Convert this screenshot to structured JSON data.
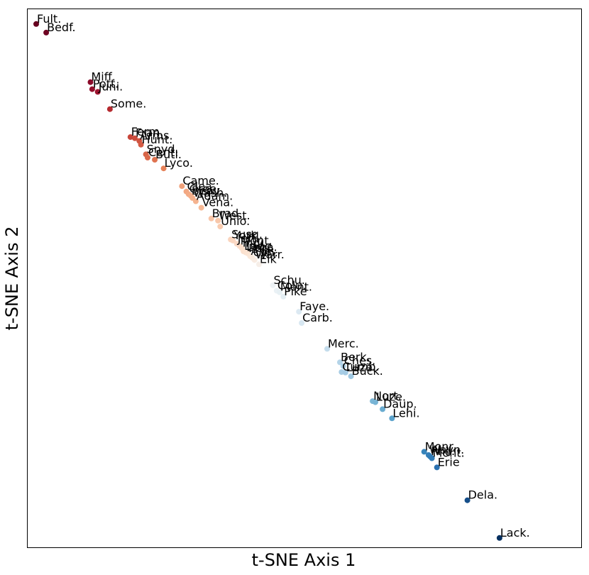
{
  "chart_data": {
    "type": "scatter",
    "title": "",
    "xlabel": "t-SNE Axis 1",
    "ylabel": "t-SNE Axis 2",
    "xlim": [
      0,
      100
    ],
    "ylim": [
      0,
      100
    ],
    "ticks": false,
    "grid": false,
    "colormap": "RdBu",
    "points": [
      {
        "label": "Fult.",
        "x": 1.6,
        "y": 97.2,
        "color": "#67001f"
      },
      {
        "label": "Bedf.",
        "x": 3.4,
        "y": 95.6,
        "color": "#6f0322"
      },
      {
        "label": "Miff.",
        "x": 11.4,
        "y": 86.4,
        "color": "#8b0a2a"
      },
      {
        "label": "Pott.",
        "x": 11.7,
        "y": 85.1,
        "color": "#930e2c"
      },
      {
        "label": "Juni.",
        "x": 12.7,
        "y": 84.6,
        "color": "#9d132e"
      },
      {
        "label": "Some.",
        "x": 14.9,
        "y": 81.4,
        "color": "#b52a2f"
      },
      {
        "label": "Ferm.",
        "x": 18.6,
        "y": 76.2,
        "color": "#c8463a"
      },
      {
        "label": "Fran.",
        "x": 19.4,
        "y": 76.0,
        "color": "#cc4c3d"
      },
      {
        "label": "Arms.",
        "x": 20.2,
        "y": 75.5,
        "color": "#d05440"
      },
      {
        "label": "Hunt.",
        "x": 20.5,
        "y": 74.8,
        "color": "#d35a43"
      },
      {
        "label": "Snyd.",
        "x": 21.4,
        "y": 73.0,
        "color": "#d86548"
      },
      {
        "label": "Cent.",
        "x": 21.7,
        "y": 72.4,
        "color": "#db6a4c"
      },
      {
        "label": "Butl.",
        "x": 23.0,
        "y": 72.0,
        "color": "#df7350"
      },
      {
        "label": "Lyco.",
        "x": 24.6,
        "y": 70.4,
        "color": "#e58158"
      },
      {
        "label": "Came.",
        "x": 27.9,
        "y": 67.1,
        "color": "#f0a079"
      },
      {
        "label": "Clea.",
        "x": 28.7,
        "y": 66.1,
        "color": "#f2a782"
      },
      {
        "label": "Gree.",
        "x": 29.1,
        "y": 65.6,
        "color": "#f3aa85"
      },
      {
        "label": "Beav.",
        "x": 29.5,
        "y": 65.3,
        "color": "#f4ad88"
      },
      {
        "label": "Wash.",
        "x": 29.8,
        "y": 64.9,
        "color": "#f5b08b"
      },
      {
        "label": "Adam.",
        "x": 30.4,
        "y": 64.3,
        "color": "#f5b38f"
      },
      {
        "label": "Vena.",
        "x": 31.4,
        "y": 63.1,
        "color": "#f6b894"
      },
      {
        "label": "Brad.",
        "x": 33.2,
        "y": 61.1,
        "color": "#f8c4a6"
      },
      {
        "label": "West.",
        "x": 34.4,
        "y": 60.7,
        "color": "#f8c7aa"
      },
      {
        "label": "Unio.",
        "x": 34.8,
        "y": 59.6,
        "color": "#f9cbaf"
      },
      {
        "label": "Susq.",
        "x": 36.7,
        "y": 57.2,
        "color": "#fad4bd"
      },
      {
        "label": "York",
        "x": 37.1,
        "y": 57.0,
        "color": "#fad6c0"
      },
      {
        "label": "Jeff.",
        "x": 37.8,
        "y": 56.4,
        "color": "#fbd9c5"
      },
      {
        "label": "Mont.",
        "x": 38.3,
        "y": 56.0,
        "color": "#fbdbc8"
      },
      {
        "label": "Indi.",
        "x": 38.7,
        "y": 55.6,
        "color": "#fbdeca"
      },
      {
        "label": "Lanc.",
        "x": 39.0,
        "y": 55.0,
        "color": "#fbe0cd"
      },
      {
        "label": "Leba.",
        "x": 39.4,
        "y": 54.8,
        "color": "#fbe2d0"
      },
      {
        "label": "Perr.",
        "x": 39.8,
        "y": 54.6,
        "color": "#fbe4d3"
      },
      {
        "label": "Alle.",
        "x": 40.2,
        "y": 54.1,
        "color": "#fae7d8"
      },
      {
        "label": "Clin.",
        "x": 40.6,
        "y": 53.8,
        "color": "#f9e9dc"
      },
      {
        "label": "Warr.",
        "x": 41.0,
        "y": 53.4,
        "color": "#f8ebe1"
      },
      {
        "label": "Elk",
        "x": 41.8,
        "y": 52.6,
        "color": "#f6eee8"
      },
      {
        "label": "Schu.",
        "x": 44.3,
        "y": 48.7,
        "color": "#edf2f5"
      },
      {
        "label": "Colu.",
        "x": 45.0,
        "y": 47.7,
        "color": "#eaf1f5"
      },
      {
        "label": "Mont.",
        "x": 45.5,
        "y": 47.4,
        "color": "#e7f0f4"
      },
      {
        "label": "Pike",
        "x": 46.2,
        "y": 46.6,
        "color": "#e4eef3"
      },
      {
        "label": "Faye.",
        "x": 49.0,
        "y": 43.8,
        "color": "#dce9f2"
      },
      {
        "label": "Carb.",
        "x": 49.5,
        "y": 41.7,
        "color": "#d7e7f1"
      },
      {
        "label": "Merc.",
        "x": 54.1,
        "y": 36.9,
        "color": "#c4dcec"
      },
      {
        "label": "Berk.",
        "x": 56.4,
        "y": 34.4,
        "color": "#b4d4e8"
      },
      {
        "label": "Ches.",
        "x": 57.0,
        "y": 33.7,
        "color": "#afd1e7"
      },
      {
        "label": "Cumb.",
        "x": 56.7,
        "y": 32.6,
        "color": "#a8cde5"
      },
      {
        "label": "Luze.",
        "x": 57.4,
        "y": 32.5,
        "color": "#a5cbe4"
      },
      {
        "label": "Buck.",
        "x": 58.4,
        "y": 31.8,
        "color": "#9ec7e1"
      },
      {
        "label": "Nort.",
        "x": 62.3,
        "y": 27.2,
        "color": "#7bb6d6"
      },
      {
        "label": "Luze.",
        "x": 62.8,
        "y": 27.0,
        "color": "#78b4d5"
      },
      {
        "label": "Daup.",
        "x": 64.1,
        "y": 25.7,
        "color": "#6aacd0"
      },
      {
        "label": "Lehi.",
        "x": 65.8,
        "y": 24.0,
        "color": "#5ba2cb"
      },
      {
        "label": "Monr.",
        "x": 71.6,
        "y": 17.8,
        "color": "#3784bb"
      },
      {
        "label": "Wayn.",
        "x": 72.4,
        "y": 17.2,
        "color": "#347fb9"
      },
      {
        "label": "Phil.",
        "x": 72.7,
        "y": 16.9,
        "color": "#327db8"
      },
      {
        "label": "Mont.",
        "x": 73.0,
        "y": 16.6,
        "color": "#307bb6"
      },
      {
        "label": "Erie",
        "x": 73.9,
        "y": 14.9,
        "color": "#2a71b1"
      },
      {
        "label": "Dela.",
        "x": 79.4,
        "y": 8.8,
        "color": "#164f8a"
      },
      {
        "label": "Lack.",
        "x": 85.2,
        "y": 1.8,
        "color": "#053061"
      }
    ]
  }
}
